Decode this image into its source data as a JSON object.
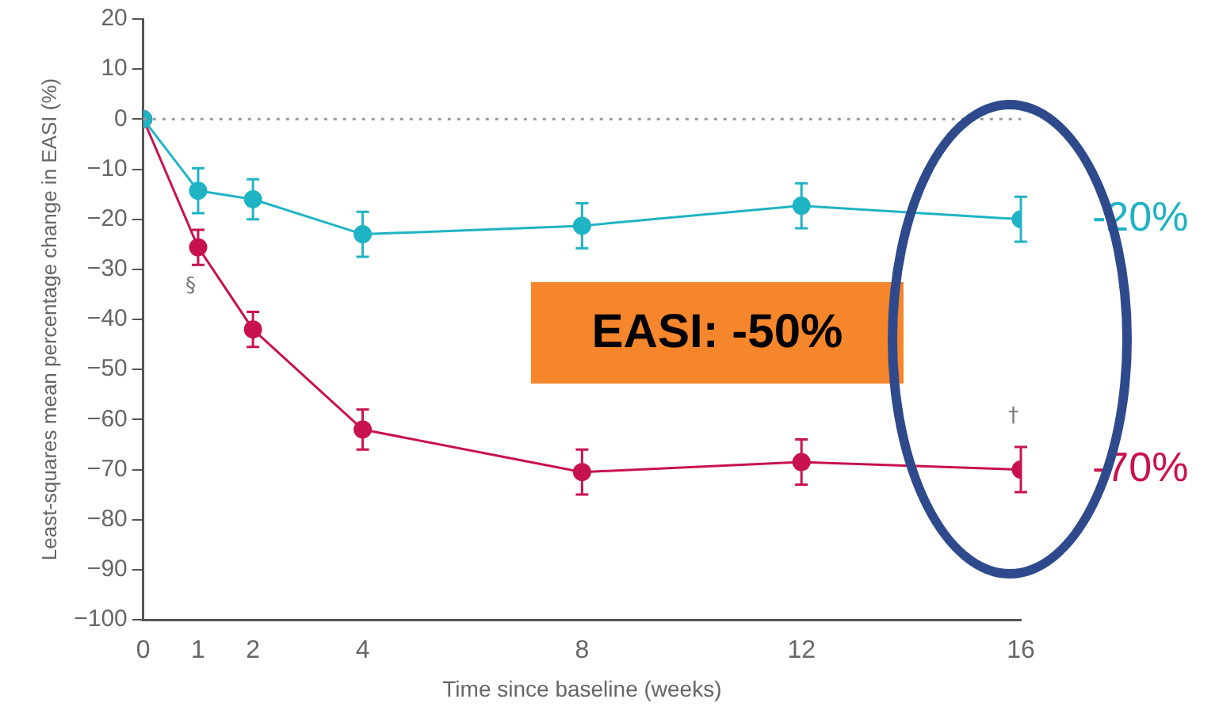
{
  "chart_data": {
    "type": "line",
    "xlabel": "Time since baseline (weeks)",
    "ylabel": "Least-squares mean percentage change in EASI (%)",
    "x": [
      0,
      1,
      2,
      4,
      8,
      12,
      16
    ],
    "series": [
      {
        "color": "#1fb3c4",
        "values": [
          0,
          -14.3,
          -16,
          -23,
          -21.3,
          -17.3,
          -20
        ],
        "errors": [
          null,
          4.5,
          4,
          4.5,
          4.5,
          4.5,
          4.5
        ]
      },
      {
        "color": "#c8124f",
        "values": [
          0,
          -25.6,
          -42,
          -62,
          -70.5,
          -68.5,
          -70
        ],
        "errors": [
          null,
          3.5,
          3.5,
          4,
          4.5,
          4.5,
          4.5
        ]
      }
    ],
    "xlim": [
      0,
      16
    ],
    "xticks": [
      0,
      1,
      2,
      4,
      8,
      12,
      16
    ],
    "ylim": [
      -100,
      20
    ],
    "yticks": [
      20,
      10,
      0,
      -10,
      -20,
      -30,
      -40,
      -50,
      -60,
      -70,
      -80,
      -90,
      -100
    ],
    "ref_lines": [
      {
        "axis": "y",
        "value": 0,
        "color": "#999999",
        "line_style": "dotted"
      }
    ],
    "marker": "circle",
    "line_style": "solid",
    "grid": false,
    "legend": false,
    "annotations": [
      "§",
      "†",
      {
        "text": "-20%",
        "x": 16,
        "y": -20
      },
      {
        "text": "-70%",
        "x": 16,
        "y": -70
      },
      "EASI: -50%"
    ]
  }
}
